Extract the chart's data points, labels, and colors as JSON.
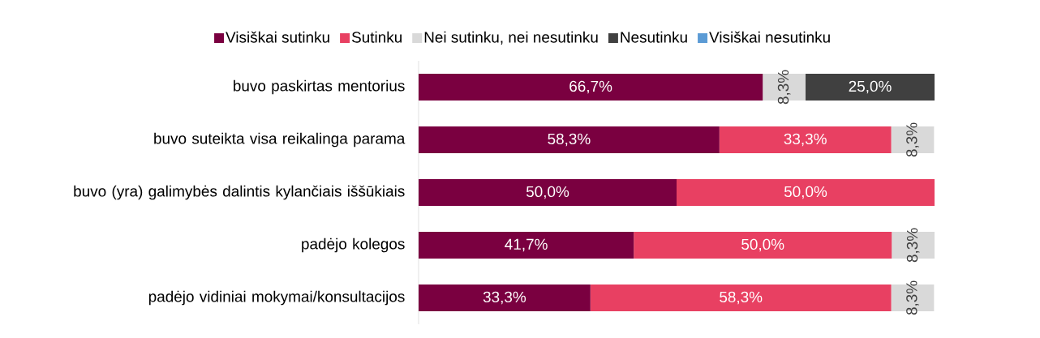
{
  "chart_data": {
    "type": "bar",
    "orientation": "horizontal",
    "stacked": true,
    "legend": "top",
    "tick_labels": "y",
    "xlim": [
      0,
      100
    ],
    "categories": [
      "buvo paskirtas mentorius",
      "buvo suteikta visa reikalinga parama",
      "buvo (yra) galimybės dalintis kylančiais iššūkiais",
      "padėjo kolegos",
      "padėjo vidiniai mokymai/konsultacijos"
    ],
    "series": [
      {
        "name": "Visiškai sutinku",
        "color": "#7a0040",
        "values": [
          66.7,
          58.3,
          50.0,
          41.7,
          33.3
        ],
        "value_labels": [
          "66,7%",
          "58,3%",
          "50,0%",
          "41,7%",
          "33,3%"
        ]
      },
      {
        "name": "Sutinku",
        "color": "#e84062",
        "values": [
          null,
          33.3,
          50.0,
          50.0,
          58.3
        ],
        "value_labels": [
          null,
          "33,3%",
          "50,0%",
          "50,0%",
          "58,3%"
        ]
      },
      {
        "name": "Nei sutinku, nei nesutinku",
        "color": "#d9d9d9",
        "values": [
          8.3,
          8.3,
          null,
          8.3,
          8.3
        ],
        "value_labels": [
          "8,3%",
          "8,3%",
          null,
          "8,3%",
          "8,3%"
        ]
      },
      {
        "name": "Nesutinku",
        "color": "#404040",
        "values": [
          25.0,
          null,
          null,
          null,
          null
        ],
        "value_labels": [
          "25,0%",
          null,
          null,
          null,
          null
        ]
      },
      {
        "name": "Visiškai nesutinku",
        "color": "#5b9bd5",
        "values": [
          null,
          null,
          null,
          null,
          null
        ],
        "value_labels": [
          null,
          null,
          null,
          null,
          null
        ]
      }
    ]
  }
}
